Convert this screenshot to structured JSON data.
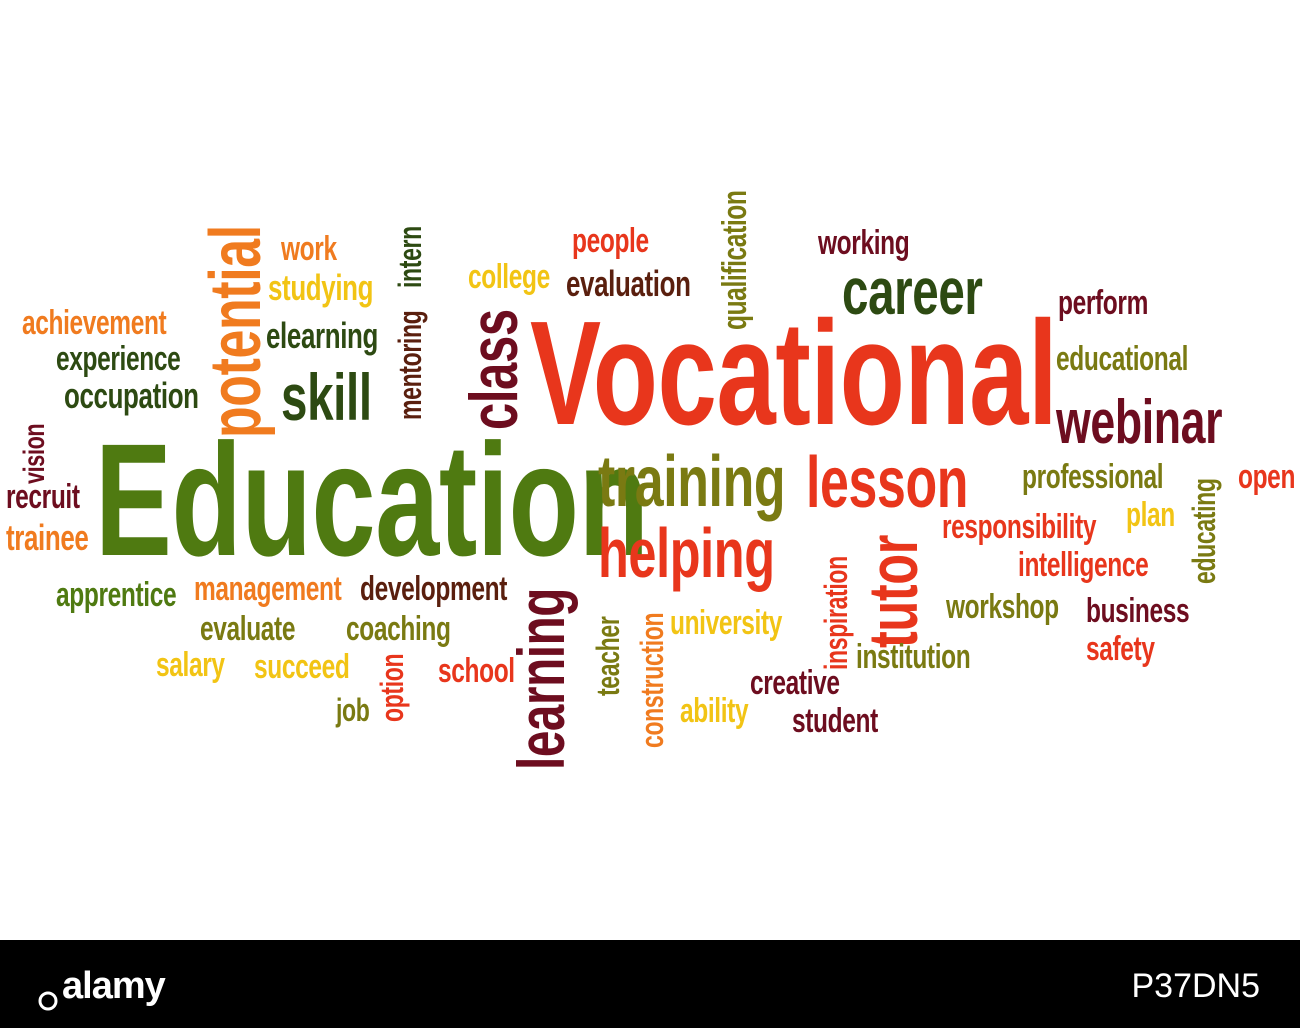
{
  "words": {
    "vocational": "Vocational",
    "education": "Education",
    "training": "training",
    "lesson": "lesson",
    "helping": "helping",
    "career": "career",
    "webinar": "webinar",
    "potential": "potential",
    "skill": "skill",
    "class": "class",
    "learning": "learning",
    "tutor": "tutor",
    "work": "work",
    "studying": "studying",
    "elearning": "elearning",
    "mentoring": "mentoring",
    "intern": "intern",
    "college": "college",
    "people": "people",
    "evaluation": "evaluation",
    "qualification": "qualification",
    "working": "working",
    "perform": "perform",
    "educational": "educational",
    "achievement": "achievement",
    "experience": "experience",
    "occupation": "occupation",
    "vision": "vision",
    "recruit": "recruit",
    "trainee": "trainee",
    "professional": "professional",
    "open": "open",
    "educating": "educating",
    "responsibility": "responsibility",
    "plan": "plan",
    "intelligence": "intelligence",
    "workshop": "workshop",
    "business": "business",
    "safety": "safety",
    "inspiration": "inspiration",
    "institution": "institution",
    "creative": "creative",
    "student": "student",
    "ability": "ability",
    "university": "university",
    "construction": "construction",
    "teacher": "teacher",
    "school": "school",
    "option": "option",
    "job": "job",
    "succeed": "succeed",
    "salary": "salary",
    "evaluate": "evaluate",
    "coaching": "coaching",
    "development": "development",
    "management": "management",
    "apprentice": "apprentice"
  },
  "footer": {
    "logo": "alamy",
    "image_id": "P37DN5"
  }
}
